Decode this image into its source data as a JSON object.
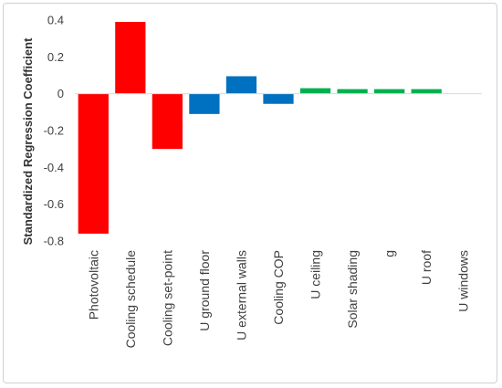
{
  "chart_data": {
    "type": "bar",
    "title": "",
    "xlabel": "",
    "ylabel": "Standardized Regression Coefficient",
    "ylim": [
      -0.8,
      0.4
    ],
    "yticks": [
      0.4,
      0.2,
      0,
      -0.2,
      -0.4,
      -0.6,
      -0.8
    ],
    "ytick_labels": [
      "0.4",
      "0.2",
      "0",
      "-0.2",
      "-0.4",
      "-0.6",
      "-0.8"
    ],
    "grid": false,
    "categories": [
      "Photovoltaic",
      "Cooling schedule",
      "Cooling set-point",
      "U ground floor",
      "U external walls",
      "Cooling COP",
      "U ceiling",
      "Solar shading",
      "g",
      "U roof",
      "U windows"
    ],
    "values": [
      -0.76,
      0.39,
      -0.3,
      -0.11,
      0.095,
      -0.055,
      0.03,
      0.025,
      0.025,
      0.025,
      0.0
    ],
    "colors": [
      "#ff0000",
      "#ff0000",
      "#ff0000",
      "#0070c0",
      "#0070c0",
      "#0070c0",
      "#00b050",
      "#00b050",
      "#00b050",
      "#00b050",
      "#00b050"
    ]
  }
}
